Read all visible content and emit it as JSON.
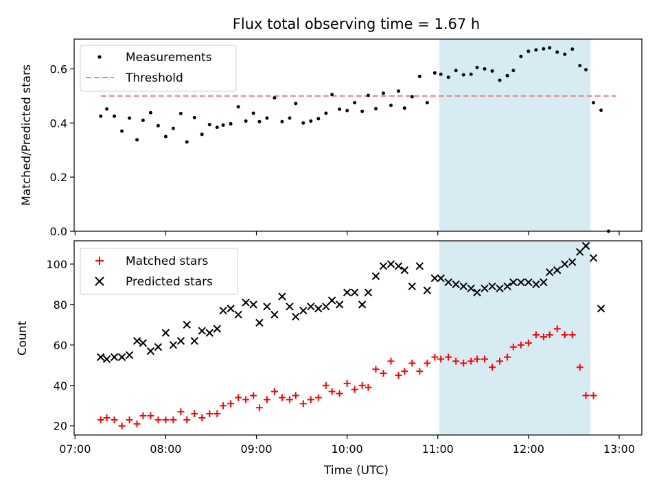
{
  "chart_data": {
    "type": "scatter",
    "title": "Flux total observing time = 1.67 h",
    "xlabel": "Time (UTC)",
    "x_ticks": [
      "07:00",
      "08:00",
      "09:00",
      "10:00",
      "11:00",
      "12:00",
      "13:00"
    ],
    "x_range_hours": [
      6.99,
      13.25
    ],
    "shaded_interval": {
      "start": "11:01",
      "end": "12:41",
      "color": "#add8e6"
    },
    "panels": [
      {
        "id": "ratio",
        "ylabel": "Matched/Predicted stars",
        "ylim": [
          0,
          0.71
        ],
        "yticks": [
          "0.0",
          "0.2",
          "0.4",
          "0.6"
        ],
        "legend_position": "top-left",
        "threshold": {
          "name": "Threshold",
          "value": 0.5,
          "x_start": "07:17",
          "x_end": "12:58",
          "color": "#f08080",
          "style": "dashed"
        },
        "series": [
          {
            "name": "Measurements",
            "marker": "dot",
            "color": "#000000",
            "x": [
              "07:17",
              "07:21",
              "07:26",
              "07:31",
              "07:36",
              "07:41",
              "07:45",
              "07:50",
              "07:55",
              "08:00",
              "08:05",
              "08:10",
              "08:14",
              "08:19",
              "08:24",
              "08:29",
              "08:34",
              "08:38",
              "08:43",
              "08:48",
              "08:53",
              "08:58",
              "09:02",
              "09:07",
              "09:12",
              "09:17",
              "09:22",
              "09:26",
              "09:31",
              "09:36",
              "09:41",
              "09:46",
              "09:50",
              "09:55",
              "10:00",
              "10:05",
              "10:10",
              "10:14",
              "10:19",
              "10:24",
              "10:29",
              "10:34",
              "10:38",
              "10:43",
              "10:48",
              "10:53",
              "10:58",
              "11:02",
              "11:07",
              "11:12",
              "11:17",
              "11:22",
              "11:26",
              "11:31",
              "11:36",
              "11:41",
              "11:46",
              "11:50",
              "11:55",
              "12:00",
              "12:05",
              "12:10",
              "12:14",
              "12:19",
              "12:24",
              "12:29",
              "12:34",
              "12:38",
              "12:43",
              "12:48",
              "12:53"
            ],
            "values": [
              0.425,
              0.452,
              0.425,
              0.37,
              0.418,
              0.338,
              0.41,
              0.438,
              0.39,
              0.35,
              0.38,
              0.435,
              0.33,
              0.42,
              0.358,
              0.394,
              0.384,
              0.392,
              0.397,
              0.46,
              0.407,
              0.436,
              0.405,
              0.418,
              0.493,
              0.405,
              0.418,
              0.472,
              0.4,
              0.407,
              0.416,
              0.436,
              0.505,
              0.451,
              0.446,
              0.475,
              0.443,
              0.502,
              0.453,
              0.51,
              0.465,
              0.518,
              0.455,
              0.497,
              0.572,
              0.475,
              0.585,
              0.58,
              0.569,
              0.594,
              0.578,
              0.58,
              0.605,
              0.6,
              0.592,
              0.558,
              0.575,
              0.594,
              0.646,
              0.665,
              0.67,
              0.674,
              0.678,
              0.662,
              0.654,
              0.673,
              0.612,
              0.597,
              0.475,
              0.447,
              0.0
            ]
          }
        ]
      },
      {
        "id": "count",
        "ylabel": "Count",
        "ylim": [
          15.5,
          111.5
        ],
        "yticks": [
          "20",
          "40",
          "60",
          "80",
          "100"
        ],
        "legend_position": "top-left",
        "series": [
          {
            "name": "Matched stars",
            "marker": "plus",
            "color": "#ff0000",
            "x": [
              "07:17",
              "07:21",
              "07:26",
              "07:31",
              "07:36",
              "07:41",
              "07:45",
              "07:50",
              "07:55",
              "08:00",
              "08:05",
              "08:10",
              "08:14",
              "08:19",
              "08:24",
              "08:29",
              "08:34",
              "08:38",
              "08:43",
              "08:48",
              "08:53",
              "08:58",
              "09:02",
              "09:07",
              "09:12",
              "09:17",
              "09:22",
              "09:26",
              "09:31",
              "09:36",
              "09:41",
              "09:46",
              "09:50",
              "09:55",
              "10:00",
              "10:05",
              "10:10",
              "10:14",
              "10:19",
              "10:24",
              "10:29",
              "10:34",
              "10:38",
              "10:43",
              "10:48",
              "10:53",
              "10:58",
              "11:02",
              "11:07",
              "11:12",
              "11:17",
              "11:22",
              "11:26",
              "11:31",
              "11:36",
              "11:41",
              "11:46",
              "11:50",
              "11:55",
              "12:00",
              "12:05",
              "12:10",
              "12:14",
              "12:19",
              "12:24",
              "12:29",
              "12:34",
              "12:38",
              "12:43",
              "12:48",
              "12:53"
            ],
            "values": [
              23,
              24,
              23,
              20,
              23,
              21,
              25,
              25,
              23,
              23,
              23,
              27,
              23,
              26,
              24,
              26,
              26,
              30,
              31,
              34,
              33,
              35,
              29,
              33,
              37,
              34,
              33,
              35,
              31,
              33,
              34,
              40,
              37,
              36,
              41,
              38,
              40,
              39,
              48,
              46,
              52,
              45,
              47,
              51,
              47,
              51,
              54,
              53,
              54,
              52,
              51,
              52,
              53,
              53,
              49,
              52,
              54,
              59,
              60,
              61,
              65,
              64,
              65,
              68,
              65,
              65,
              49,
              35,
              35,
              null,
              null
            ]
          },
          {
            "name": "Predicted stars",
            "marker": "x",
            "color": "#000000",
            "x": [
              "07:17",
              "07:21",
              "07:26",
              "07:31",
              "07:36",
              "07:41",
              "07:45",
              "07:50",
              "07:55",
              "08:00",
              "08:05",
              "08:10",
              "08:14",
              "08:19",
              "08:24",
              "08:29",
              "08:34",
              "08:38",
              "08:43",
              "08:48",
              "08:53",
              "08:58",
              "09:02",
              "09:07",
              "09:12",
              "09:17",
              "09:22",
              "09:26",
              "09:31",
              "09:36",
              "09:41",
              "09:46",
              "09:50",
              "09:55",
              "10:00",
              "10:05",
              "10:10",
              "10:14",
              "10:19",
              "10:24",
              "10:29",
              "10:34",
              "10:38",
              "10:43",
              "10:48",
              "10:53",
              "10:58",
              "11:02",
              "11:07",
              "11:12",
              "11:17",
              "11:22",
              "11:26",
              "11:31",
              "11:36",
              "11:41",
              "11:46",
              "11:50",
              "11:55",
              "12:00",
              "12:05",
              "12:10",
              "12:14",
              "12:19",
              "12:24",
              "12:29",
              "12:34",
              "12:38",
              "12:43",
              "12:48",
              "12:53"
            ],
            "values": [
              54,
              53,
              54,
              54,
              55,
              62,
              61,
              57,
              59,
              66,
              60,
              62,
              70,
              62,
              67,
              66,
              68,
              77,
              78,
              75,
              81,
              80,
              71,
              79,
              75,
              84,
              79,
              74,
              77,
              79,
              78,
              79,
              82,
              80,
              86,
              86,
              80,
              86,
              94,
              99,
              100,
              99,
              97,
              89,
              99,
              87,
              93,
              93,
              91,
              90,
              89,
              88,
              86,
              88,
              89,
              88,
              89,
              91,
              91,
              91,
              90,
              91,
              96,
              97,
              100,
              101,
              106,
              109,
              103,
              78,
              null
            ]
          }
        ]
      }
    ]
  }
}
